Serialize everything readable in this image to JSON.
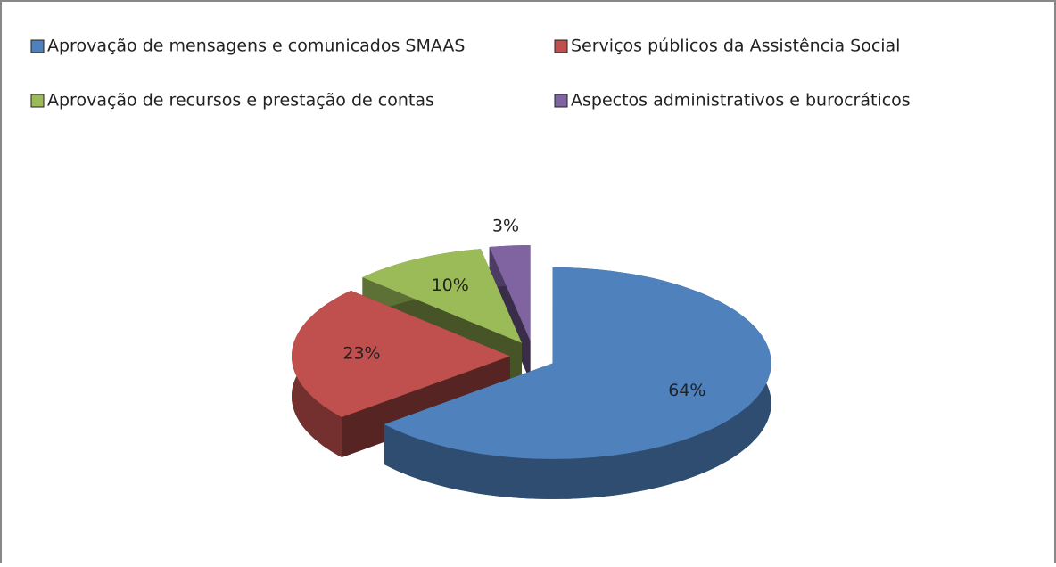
{
  "chart_data": {
    "type": "pie3d",
    "categories": [
      "Aprovação de mensagens e comunicados SMAAS",
      "Serviços públicos da Assistência Social",
      "Aprovação de recursos e prestação de contas",
      "Aspectos administrativos e burocráticos"
    ],
    "values": [
      64,
      23,
      10,
      3
    ],
    "value_labels": [
      "64%",
      "23%",
      "10%",
      "3%"
    ],
    "colors": [
      "#4f81bd",
      "#c0504d",
      "#9bbb59",
      "#8064a2"
    ],
    "legend": "top"
  }
}
